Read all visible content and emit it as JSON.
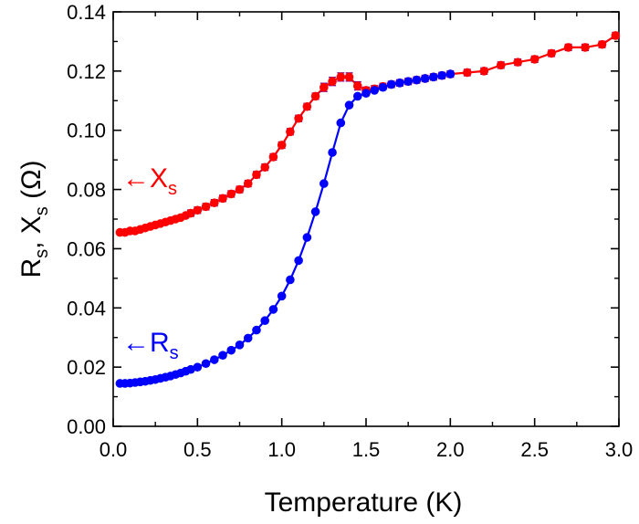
{
  "chart_data": {
    "type": "scatter",
    "xlabel": "Temperature (K)",
    "ylabel": {
      "main_1": "R",
      "sub_1": "s",
      "sep": ", ",
      "main_2": "X",
      "sub_2": "s",
      "unit": " (Ω)"
    },
    "xlim": [
      0.0,
      3.0
    ],
    "ylim": [
      0.0,
      0.14
    ],
    "xticks": [
      "0.0",
      "0.5",
      "1.0",
      "1.5",
      "2.0",
      "2.5",
      "3.0"
    ],
    "yticks": [
      "0.00",
      "0.02",
      "0.04",
      "0.06",
      "0.08",
      "0.10",
      "0.12",
      "0.14"
    ],
    "grid": false,
    "series": [
      {
        "name": "Xs",
        "color": "#ff0000",
        "annotation": {
          "arrow": "←",
          "main": "X",
          "sub": "s"
        },
        "x": [
          0.04,
          0.07,
          0.1,
          0.13,
          0.16,
          0.19,
          0.22,
          0.25,
          0.28,
          0.31,
          0.34,
          0.37,
          0.4,
          0.43,
          0.46,
          0.5,
          0.55,
          0.6,
          0.65,
          0.7,
          0.75,
          0.8,
          0.85,
          0.9,
          0.95,
          1.0,
          1.05,
          1.1,
          1.15,
          1.2,
          1.25,
          1.3,
          1.35,
          1.4,
          1.45,
          1.5,
          1.55,
          1.6,
          1.65,
          1.7,
          1.75,
          1.8,
          1.85,
          1.9,
          1.95,
          2.0,
          2.1,
          2.2,
          2.3,
          2.4,
          2.5,
          2.6,
          2.7,
          2.8,
          2.9,
          2.98
        ],
        "y": [
          0.0655,
          0.0655,
          0.066,
          0.066,
          0.0665,
          0.067,
          0.0675,
          0.068,
          0.0685,
          0.069,
          0.0695,
          0.07,
          0.0705,
          0.0712,
          0.072,
          0.073,
          0.0742,
          0.0755,
          0.077,
          0.0785,
          0.08,
          0.082,
          0.085,
          0.0875,
          0.091,
          0.095,
          0.0995,
          0.104,
          0.108,
          0.1115,
          0.1145,
          0.1165,
          0.118,
          0.118,
          0.115,
          0.1135,
          0.114,
          0.1148,
          0.1155,
          0.116,
          0.1165,
          0.117,
          0.1175,
          0.118,
          0.1185,
          0.119,
          0.1195,
          0.12,
          0.122,
          0.123,
          0.124,
          0.126,
          0.128,
          0.128,
          0.129,
          0.132
        ]
      },
      {
        "name": "Rs",
        "color": "#0000ff",
        "annotation": {
          "arrow": "←",
          "main": "R",
          "sub": "s"
        },
        "x": [
          0.04,
          0.07,
          0.1,
          0.13,
          0.16,
          0.19,
          0.22,
          0.25,
          0.28,
          0.31,
          0.34,
          0.37,
          0.4,
          0.43,
          0.46,
          0.5,
          0.55,
          0.6,
          0.65,
          0.7,
          0.75,
          0.8,
          0.85,
          0.9,
          0.95,
          1.0,
          1.05,
          1.1,
          1.15,
          1.2,
          1.25,
          1.3,
          1.35,
          1.4,
          1.45,
          1.5,
          1.55,
          1.6,
          1.65,
          1.7,
          1.75,
          1.8,
          1.85,
          1.9,
          1.95,
          2.0
        ],
        "y": [
          0.0145,
          0.0145,
          0.0146,
          0.0148,
          0.015,
          0.0152,
          0.0155,
          0.0158,
          0.0162,
          0.0166,
          0.017,
          0.0175,
          0.018,
          0.0186,
          0.0192,
          0.02,
          0.0212,
          0.0225,
          0.024,
          0.0257,
          0.0275,
          0.0298,
          0.0325,
          0.0357,
          0.0395,
          0.044,
          0.0495,
          0.056,
          0.0638,
          0.0725,
          0.082,
          0.0925,
          0.1025,
          0.1085,
          0.1115,
          0.1125,
          0.1135,
          0.1145,
          0.1155,
          0.116,
          0.1165,
          0.117,
          0.1175,
          0.118,
          0.1185,
          0.119
        ]
      }
    ]
  }
}
